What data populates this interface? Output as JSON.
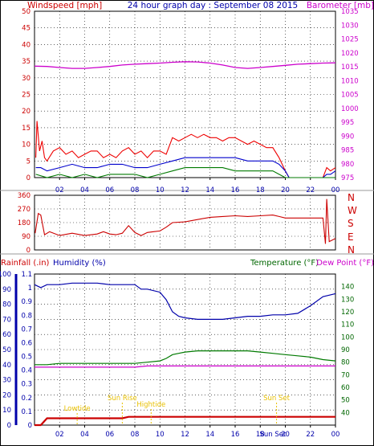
{
  "header": {
    "left_label": "Windspeed [mph]",
    "title": "24 hour graph day : September 08 2015",
    "right_label": "Barometer [mb]"
  },
  "colors": {
    "frame": "#000000",
    "windspeed": "#ee0000",
    "gust": "#ee0000",
    "average": "#0000cc",
    "lull": "#007a00",
    "barometer": "#cc00cc",
    "direction": "#cc0000",
    "rain": "#cc0000",
    "humidity": "#0000aa",
    "temperature": "#007a00",
    "dew_point": "#cc00cc",
    "tide": "#e8c000",
    "label_red": "#cc0000",
    "label_blue": "#0000aa",
    "label_green": "#006600",
    "label_magenta": "#cc00cc"
  },
  "chart_data": [
    {
      "id": "wind",
      "type": "line",
      "x_axis": {
        "ticks": [
          "02",
          "04",
          "06",
          "08",
          "10",
          "12",
          "14",
          "16",
          "18",
          "20",
          "22",
          "00"
        ],
        "range_hours": [
          0,
          24
        ]
      },
      "y_left": {
        "label": "Windspeed [mph]",
        "ylim": [
          0,
          50
        ],
        "ticks": [
          0,
          5,
          10,
          15,
          20,
          25,
          30,
          35,
          40,
          45,
          50
        ]
      },
      "y_right": {
        "label": "Barometer [mb]",
        "ylim": [
          975,
          1035
        ],
        "ticks": [
          975,
          980,
          985,
          990,
          995,
          1000,
          1005,
          1010,
          1015,
          1020,
          1025,
          1030,
          1035
        ]
      },
      "series": [
        {
          "key": "gust",
          "axis": "left",
          "x": [
            0.1,
            0.2,
            0.4,
            0.6,
            0.8,
            1,
            1.5,
            2,
            2.5,
            3,
            3.5,
            4,
            4.5,
            5,
            5.5,
            6,
            6.5,
            7,
            7.5,
            8,
            8.5,
            9,
            9.5,
            10,
            10.5,
            11,
            11.5,
            12,
            12.5,
            13,
            13.5,
            14,
            14.5,
            15,
            15.5,
            16,
            16.5,
            17,
            17.5,
            18,
            18.5,
            19,
            19.5,
            20,
            20.3,
            21,
            22,
            23,
            23.3,
            23.6,
            24
          ],
          "y": [
            6,
            17,
            8,
            11,
            6,
            5,
            8,
            9,
            7,
            8,
            6,
            7,
            8,
            8,
            6,
            7,
            6,
            8,
            9,
            7,
            8,
            6,
            8,
            8,
            7,
            12,
            11,
            12,
            13,
            12,
            13,
            12,
            12,
            11,
            12,
            12,
            11,
            10,
            11,
            10,
            9,
            9,
            6,
            2,
            0,
            0,
            0,
            0,
            3,
            2,
            3
          ]
        },
        {
          "key": "average",
          "axis": "left",
          "x": [
            0.1,
            0.5,
            1,
            2,
            3,
            4,
            5,
            6,
            7,
            8,
            9,
            10,
            11,
            12,
            13,
            14,
            15,
            16,
            17,
            18,
            19,
            19.5,
            20,
            20.3,
            21,
            22,
            23,
            23.3,
            23.6,
            24
          ],
          "y": [
            3,
            3,
            2,
            3,
            4,
            3,
            3,
            4,
            4,
            3,
            3,
            4,
            5,
            6,
            6,
            6,
            6,
            6,
            5,
            5,
            5,
            4,
            2,
            0,
            0,
            0,
            0,
            1,
            1,
            2
          ]
        },
        {
          "key": "lull",
          "axis": "left",
          "x": [
            0.1,
            1,
            2,
            3,
            4,
            5,
            6,
            7,
            8,
            9,
            10,
            11,
            12,
            13,
            14,
            15,
            16,
            17,
            18,
            19,
            19.5,
            20,
            24
          ],
          "y": [
            1,
            0,
            1,
            0,
            1,
            0,
            1,
            1,
            1,
            0,
            1,
            2,
            3,
            3,
            3,
            3,
            2,
            2,
            2,
            2,
            1,
            0,
            0
          ]
        },
        {
          "key": "barometer",
          "axis": "right",
          "x": [
            0,
            1,
            2,
            3,
            4,
            5,
            6,
            7,
            8,
            9,
            10,
            11,
            12,
            13,
            14,
            15,
            16,
            17,
            18,
            19,
            20,
            21,
            22,
            23,
            24
          ],
          "y": [
            1015.2,
            1015.1,
            1014.7,
            1014.4,
            1014.4,
            1014.7,
            1015.1,
            1015.6,
            1015.9,
            1016.1,
            1016.3,
            1016.6,
            1016.8,
            1016.7,
            1016.3,
            1015.6,
            1014.7,
            1014.4,
            1014.7,
            1015.1,
            1015.5,
            1015.9,
            1016.1,
            1016.3,
            1016.4
          ]
        }
      ]
    },
    {
      "id": "direction",
      "type": "line",
      "x_axis": {
        "range_hours": [
          0,
          24
        ]
      },
      "y_left": {
        "ylim": [
          0,
          360
        ],
        "ticks": [
          0,
          90,
          180,
          270,
          360
        ]
      },
      "compass_labels": [
        "N",
        "W",
        "S",
        "E",
        "N"
      ],
      "series": [
        {
          "key": "direction",
          "axis": "left",
          "x": [
            0.05,
            0.3,
            0.5,
            0.8,
            1.2,
            2,
            3,
            4,
            5,
            5.5,
            6,
            6.5,
            7,
            7.5,
            8,
            8.5,
            9,
            9.5,
            10,
            10.5,
            11,
            12,
            13,
            14,
            15,
            16,
            17,
            18,
            19,
            19.5,
            20,
            20.5,
            21,
            22,
            23,
            23.2,
            23.3,
            23.5,
            24
          ],
          "y": [
            110,
            240,
            230,
            100,
            120,
            95,
            110,
            95,
            105,
            120,
            105,
            100,
            110,
            160,
            115,
            95,
            115,
            120,
            125,
            150,
            180,
            185,
            200,
            215,
            220,
            225,
            220,
            225,
            230,
            220,
            210,
            210,
            210,
            210,
            210,
            40,
            335,
            55,
            75
          ]
        }
      ]
    },
    {
      "id": "weather",
      "type": "line",
      "x_axis": {
        "ticks": [
          "02",
          "04",
          "06",
          "08",
          "10",
          "12",
          "14",
          "16",
          "18",
          "20",
          "22",
          "00"
        ],
        "range_hours": [
          0,
          24
        ]
      },
      "header": {
        "rainfall": "Rainfall (.in)",
        "humidity": "Humidity (%)",
        "temperature": "Temperature (°F)",
        "dew_point": "Dew Point (°F)"
      },
      "y_rain": {
        "ylim": [
          0,
          1.1
        ],
        "ticks": [
          "0",
          "0.1",
          "0.2",
          "0.3",
          "0.4",
          "0.5",
          "0.6",
          "0.7",
          "0.8",
          "0.9",
          "1",
          "1.1"
        ]
      },
      "y_humidity": {
        "ylim": [
          0,
          100
        ],
        "ticks": [
          0,
          10,
          20,
          30,
          40,
          50,
          60,
          70,
          80,
          90,
          100
        ]
      },
      "y_temp": {
        "ylim": [
          30,
          150
        ],
        "ticks": [
          40,
          50,
          60,
          70,
          80,
          90,
          100,
          110,
          120,
          130,
          140
        ]
      },
      "series": [
        {
          "key": "rain",
          "axis": "rain",
          "x": [
            0,
            0.5,
            1,
            2,
            3,
            4,
            5,
            6,
            7,
            7.5,
            8,
            9,
            10,
            12,
            14,
            16,
            18,
            20,
            22,
            23,
            24
          ],
          "y": [
            0,
            0,
            0.05,
            0.05,
            0.05,
            0.05,
            0.05,
            0.05,
            0.05,
            0.06,
            0.06,
            0.06,
            0.06,
            0.06,
            0.06,
            0.06,
            0.06,
            0.06,
            0.06,
            0.06,
            0.06
          ]
        },
        {
          "key": "humidity",
          "axis": "humidity",
          "x": [
            0,
            0.5,
            1,
            2,
            3,
            4,
            5,
            6,
            7,
            8,
            8.5,
            9,
            10,
            10.5,
            11,
            11.5,
            12,
            13,
            14,
            15,
            16,
            17,
            18,
            19,
            20,
            21,
            22,
            23,
            24
          ],
          "y": [
            93,
            91,
            93,
            93,
            94,
            94,
            94,
            93,
            93,
            93,
            90,
            90,
            88,
            83,
            75,
            72,
            71,
            70,
            70,
            70,
            71,
            72,
            72,
            73,
            73,
            74,
            79,
            85,
            87
          ]
        },
        {
          "key": "temperature",
          "axis": "temp",
          "x": [
            0,
            1,
            2,
            3,
            4,
            5,
            6,
            7,
            8,
            9,
            10,
            10.5,
            11,
            11.5,
            12,
            13,
            14,
            15,
            16,
            17,
            18,
            19,
            20,
            21,
            22,
            23,
            24
          ],
          "y": [
            78,
            78,
            79,
            79,
            79,
            79,
            79,
            79,
            79,
            80,
            81,
            83,
            86,
            87,
            88,
            89,
            89,
            89,
            89,
            89,
            88,
            87,
            86,
            85,
            84,
            82,
            81
          ]
        },
        {
          "key": "dew_point",
          "axis": "temp",
          "x": [
            0,
            1,
            2,
            3,
            4,
            5,
            6,
            7,
            8,
            9,
            10,
            11,
            12,
            13,
            14,
            15,
            16,
            17,
            18,
            19,
            20,
            21,
            22,
            23,
            24
          ],
          "y": [
            76,
            76,
            76,
            76,
            76,
            76,
            76,
            76,
            76,
            77,
            77,
            77,
            77,
            77,
            77,
            77,
            77,
            77,
            77,
            77,
            77,
            77,
            77,
            77,
            77
          ]
        }
      ],
      "tide_events": [
        {
          "label": "Lowtide",
          "hour": 3.4
        },
        {
          "label": "Sun Rise",
          "hour": 7.0
        },
        {
          "label": "Hightide",
          "hour": 9.3
        },
        {
          "label": "Sun Set",
          "hour": 19.3
        }
      ],
      "overlay_labels": [
        {
          "label": "Sun Set",
          "hour": 19.0
        }
      ]
    }
  ]
}
